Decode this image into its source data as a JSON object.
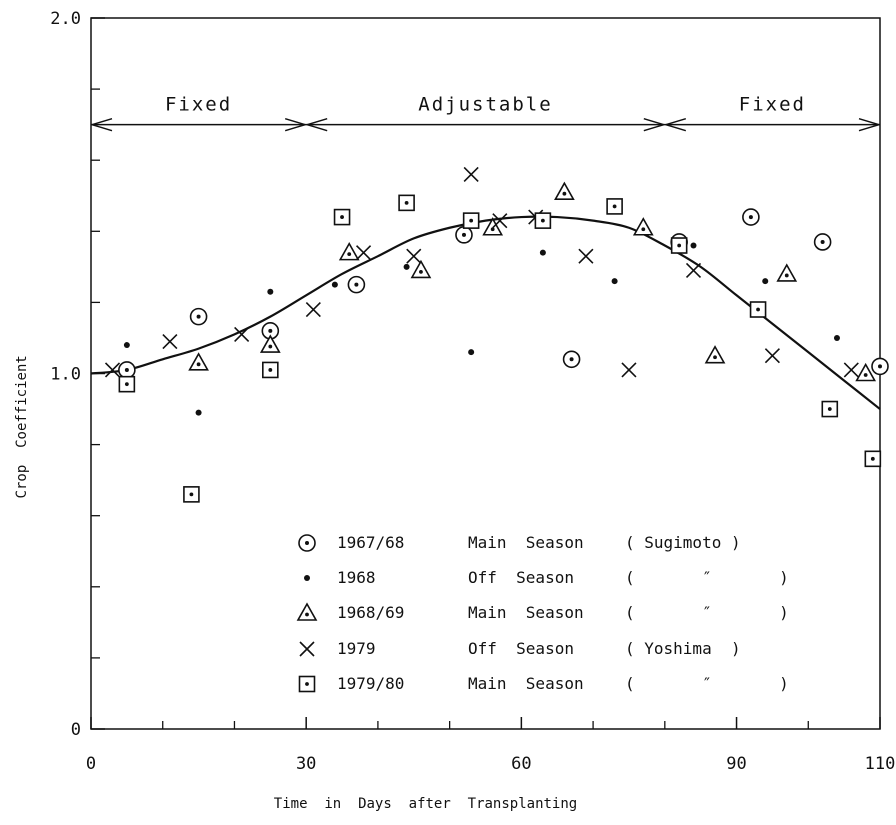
{
  "chart_data": {
    "type": "scatter",
    "title": "",
    "xlabel": "Time  in  Days  after  Transplanting",
    "ylabel": "Crop  Coefficient",
    "xlim": [
      0,
      110
    ],
    "ylim": [
      0,
      2.0
    ],
    "x_ticks": [
      {
        "value": 0,
        "label": "0"
      },
      {
        "value": 30,
        "label": "30"
      },
      {
        "value": 60,
        "label": "60"
      },
      {
        "value": 90,
        "label": "90"
      },
      {
        "value": 110,
        "label": "110"
      }
    ],
    "y_ticks": [
      {
        "value": 0,
        "label": "0"
      },
      {
        "value": 1.0,
        "label": "1.0"
      },
      {
        "value": 2.0,
        "label": "2.0"
      }
    ],
    "y_minor_ticks": [
      0.2,
      0.4,
      0.6,
      0.8,
      1.2,
      1.4,
      1.6,
      1.8
    ],
    "x_minor_ticks": [
      10,
      20,
      40,
      50,
      70,
      80,
      100
    ],
    "phase_level": 1.7,
    "phases": [
      {
        "label": "Fixed",
        "x_start": 0,
        "x_end": 30
      },
      {
        "label": "Adjustable",
        "x_start": 30,
        "x_end": 80
      },
      {
        "label": "Fixed",
        "x_start": 80,
        "x_end": 110
      }
    ],
    "fitted_curve": {
      "x": [
        0,
        5,
        10,
        15,
        20,
        25,
        30,
        35,
        40,
        45,
        50,
        55,
        60,
        65,
        70,
        75,
        80,
        85,
        90,
        95,
        100,
        105,
        110
      ],
      "y": [
        1.0,
        1.01,
        1.04,
        1.07,
        1.11,
        1.16,
        1.22,
        1.28,
        1.33,
        1.38,
        1.41,
        1.43,
        1.44,
        1.44,
        1.43,
        1.41,
        1.36,
        1.3,
        1.22,
        1.14,
        1.06,
        0.98,
        0.9
      ]
    },
    "series": [
      {
        "name": "1967/68",
        "marker": "circle-dot",
        "season": "Main  Season",
        "source": "( Sugimoto )",
        "x": [
          5,
          15,
          25,
          37,
          52,
          67,
          82,
          92,
          102,
          110
        ],
        "y": [
          1.01,
          1.16,
          1.12,
          1.25,
          1.39,
          1.04,
          1.37,
          1.44,
          1.37,
          1.02
        ]
      },
      {
        "name": "1968",
        "marker": "dot",
        "season": "Off  Season",
        "source": "(       ″       )",
        "x": [
          5,
          15,
          25,
          34,
          44,
          53,
          63,
          73,
          84,
          94,
          104
        ],
        "y": [
          1.08,
          0.89,
          1.23,
          1.25,
          1.3,
          1.06,
          1.34,
          1.26,
          1.36,
          1.26,
          1.1
        ]
      },
      {
        "name": "1968/69",
        "marker": "triangle-dot",
        "season": "Main  Season",
        "source": "(       ″       )",
        "x": [
          15,
          25,
          36,
          46,
          56,
          66,
          77,
          87,
          97,
          108
        ],
        "y": [
          1.03,
          1.08,
          1.34,
          1.29,
          1.41,
          1.51,
          1.41,
          1.05,
          1.28,
          1.0
        ]
      },
      {
        "name": "1979",
        "marker": "cross",
        "season": "Off  Season",
        "source": "( Yoshima  )",
        "x": [
          3,
          11,
          21,
          31,
          38,
          45,
          53,
          57,
          62,
          69,
          75,
          84,
          95,
          106
        ],
        "y": [
          1.01,
          1.09,
          1.11,
          1.18,
          1.34,
          1.33,
          1.56,
          1.43,
          1.44,
          1.33,
          1.01,
          1.29,
          1.05,
          1.01
        ]
      },
      {
        "name": "1979/80",
        "marker": "square-dot",
        "season": "Main  Season",
        "source": "(       ″       )",
        "x": [
          5,
          14,
          25,
          35,
          44,
          53,
          63,
          73,
          82,
          93,
          103,
          109
        ],
        "y": [
          0.97,
          0.66,
          1.01,
          1.44,
          1.48,
          1.43,
          1.43,
          1.47,
          1.36,
          1.18,
          0.9,
          0.76
        ]
      }
    ],
    "legend_position": "lower-center",
    "grid": false
  }
}
